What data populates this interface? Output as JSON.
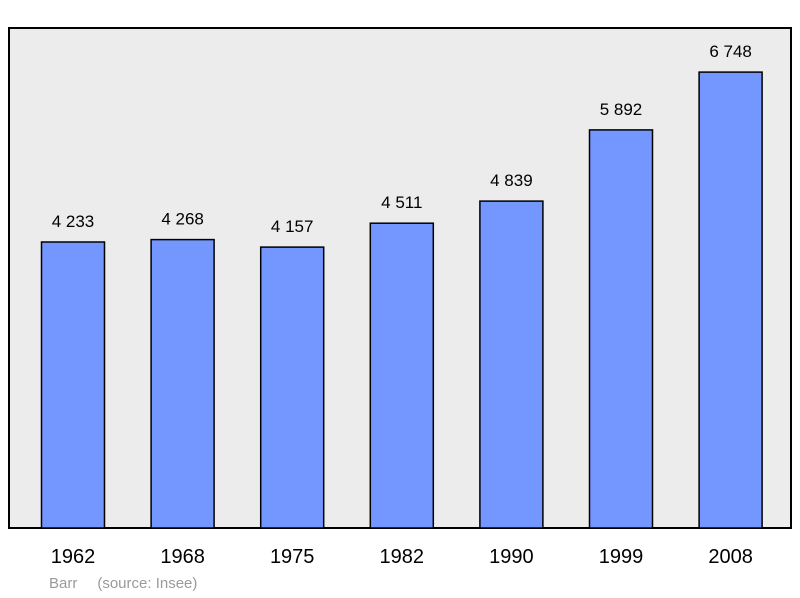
{
  "chart_data": {
    "type": "bar",
    "categories": [
      "1962",
      "1968",
      "1975",
      "1982",
      "1990",
      "1999",
      "2008"
    ],
    "values": [
      4233,
      4268,
      4157,
      4511,
      4839,
      5892,
      6748
    ],
    "value_labels": [
      "4 233",
      "4 268",
      "4 157",
      "4 511",
      "4 839",
      "5 892",
      "6 748"
    ],
    "title": "",
    "xlabel": "",
    "ylabel": "",
    "ylim": [
      0,
      7200
    ],
    "grid": false,
    "legend": "none"
  },
  "caption": {
    "place": "Barr",
    "source": "(source: Insee)"
  },
  "colors": {
    "bar": "#7396ff",
    "plot_background": "#ececec",
    "frame": "#000000",
    "caption_text": "#9a9a9a"
  }
}
